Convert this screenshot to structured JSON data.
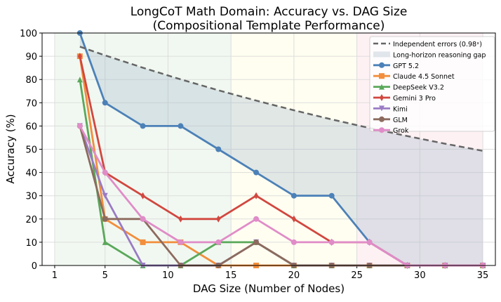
{
  "chart_data": {
    "type": "line",
    "title": "LongCoT Math Domain: Accuracy vs. DAG Size",
    "subtitle": "(Compositional Template Performance)",
    "xlabel": "DAG Size (Number of Nodes)",
    "ylabel": "Accuracy (%)",
    "xlim": [
      0,
      36
    ],
    "ylim": [
      0,
      100
    ],
    "xticks": [
      1,
      5,
      10,
      15,
      20,
      25,
      30,
      35
    ],
    "yticks": [
      0,
      10,
      20,
      30,
      40,
      50,
      60,
      70,
      80,
      90,
      100
    ],
    "grid": true,
    "legend_placement": "top-right",
    "regions": [
      {
        "from": 1,
        "to": 15,
        "color": "#e8f3e8"
      },
      {
        "from": 15,
        "to": 25,
        "color": "#fffde8"
      },
      {
        "from": 25,
        "to": 35,
        "color": "#fde8ec"
      }
    ],
    "x": [
      3,
      5,
      8,
      11,
      14,
      17,
      20,
      23,
      26,
      29,
      32,
      35
    ],
    "reference": {
      "name": "Independent errors (0.98ˣ)",
      "base": 0.98,
      "color": "#666666"
    },
    "gap": {
      "name": "Long-horizon reasoning gap",
      "color": "#9ab4c8"
    },
    "series": [
      {
        "name": "GPT 5.2",
        "color": "#4c81b8",
        "marker": "circle",
        "values": [
          100,
          70,
          60,
          60,
          50,
          40,
          30,
          30,
          10,
          0,
          0,
          0
        ]
      },
      {
        "name": "Claude 4.5 Sonnet",
        "color": "#f28e3c",
        "marker": "square",
        "values": [
          90,
          20,
          10,
          10,
          0,
          0,
          0,
          0,
          0,
          0,
          0,
          0
        ]
      },
      {
        "name": "DeepSeek V3.2",
        "color": "#5aa85a",
        "marker": "triangle-up",
        "values": [
          80,
          10,
          0,
          0,
          10,
          10,
          0,
          0,
          0,
          0,
          0,
          0
        ]
      },
      {
        "name": "Gemini 3 Pro",
        "color": "#d1473f",
        "marker": "diamond",
        "values": [
          90,
          40,
          30,
          20,
          20,
          30,
          20,
          10,
          10,
          0,
          0,
          0
        ]
      },
      {
        "name": "Kimi",
        "color": "#9a7bc4",
        "marker": "triangle-down",
        "values": [
          60,
          30,
          0,
          0,
          0,
          10,
          0,
          0,
          0,
          0,
          0,
          0
        ]
      },
      {
        "name": "GLM",
        "color": "#8c6b5e",
        "marker": "hexagon",
        "values": [
          60,
          20,
          20,
          0,
          0,
          10,
          0,
          0,
          0,
          0,
          0,
          0
        ]
      },
      {
        "name": "Grok",
        "color": "#e08cc8",
        "marker": "circle",
        "values": [
          60,
          40,
          20,
          10,
          10,
          20,
          10,
          10,
          10,
          0,
          0,
          0
        ]
      }
    ]
  }
}
